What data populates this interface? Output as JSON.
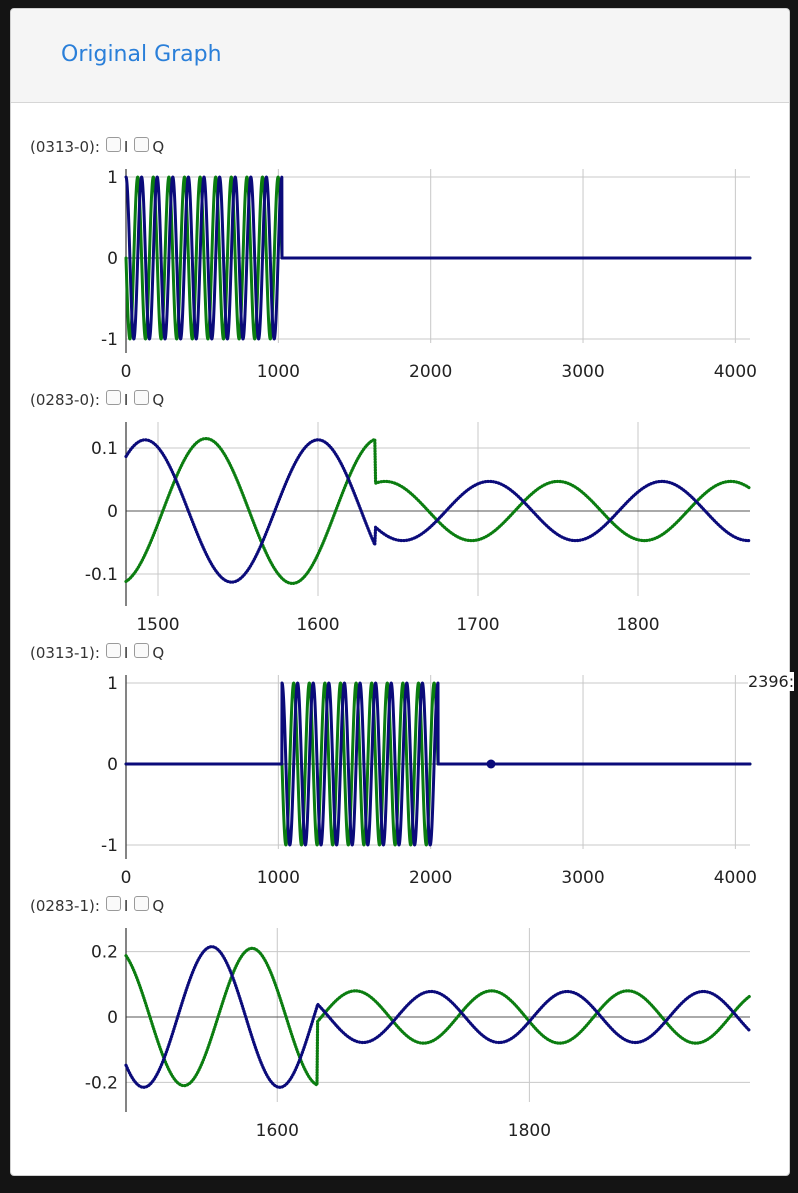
{
  "header": {
    "title": "Original Graph"
  },
  "hover_readout": "2396:",
  "checkbox_labels": [
    "I",
    "Q"
  ],
  "colors": {
    "I": "#0b0b7a",
    "Q": "#0b7d10",
    "grid": "#c8c8c8",
    "axis": "#333333"
  },
  "chart_data": [
    {
      "label": "(0313-0):",
      "type": "line",
      "xlim": [
        0,
        4096
      ],
      "ylim": [
        -1.05,
        1.05
      ],
      "xticks": [
        0,
        1000,
        2000,
        3000,
        4000
      ],
      "xtick_labels": [
        "0",
        "1000",
        "2000",
        "3000",
        "4000"
      ],
      "yticks": [
        1,
        0,
        -1
      ],
      "ytick_labels": [
        "1",
        "0",
        "-1"
      ],
      "grid": true,
      "series": [
        {
          "key": "I",
          "kind": "burst",
          "start": 0,
          "end": 1024,
          "cycles": 10,
          "amplitude": 1,
          "phase": 0
        },
        {
          "key": "Q",
          "kind": "burst",
          "start": 0,
          "end": 1024,
          "cycles": 10,
          "amplitude": 1,
          "phase": 1.5708
        }
      ]
    },
    {
      "label": "(0283-0):",
      "type": "line",
      "xlim": [
        1480,
        1870
      ],
      "ylim": [
        -0.135,
        0.135
      ],
      "xticks": [
        1500,
        1600,
        1700,
        1800
      ],
      "xtick_labels": [
        "1500",
        "1600",
        "1700",
        "1800"
      ],
      "yticks": [
        0.1,
        0,
        -0.1
      ],
      "ytick_labels": [
        "0.1",
        "0",
        "-0.1"
      ],
      "grid": true,
      "series": [
        {
          "key": "I",
          "kind": "decay",
          "switch": 1636,
          "period": 108,
          "amp1": 0.113,
          "amp2": 0.047,
          "peak1": 1492,
          "peak2": 1815
        },
        {
          "key": "Q",
          "kind": "decay",
          "switch": 1636,
          "period": 108,
          "amp1": 0.115,
          "amp2": 0.047,
          "peak1": 1530,
          "peak2": 1750
        }
      ]
    },
    {
      "label": "(0313-1):",
      "type": "line",
      "xlim": [
        0,
        4096
      ],
      "ylim": [
        -1.05,
        1.05
      ],
      "xticks": [
        0,
        1000,
        2000,
        3000,
        4000
      ],
      "xtick_labels": [
        "0",
        "1000",
        "2000",
        "3000",
        "4000"
      ],
      "yticks": [
        1,
        0,
        -1
      ],
      "ytick_labels": [
        "1",
        "0",
        "-1"
      ],
      "grid": true,
      "marker": {
        "x": 2396,
        "y": 0
      },
      "series": [
        {
          "key": "I",
          "kind": "burst",
          "start": 1024,
          "end": 2048,
          "cycles": 10,
          "amplitude": 1,
          "phase": 0
        },
        {
          "key": "Q",
          "kind": "burst",
          "start": 1024,
          "end": 2048,
          "cycles": 10,
          "amplitude": 1,
          "phase": 1.5708
        }
      ]
    },
    {
      "label": "(0283-1):",
      "type": "line",
      "xlim": [
        1480,
        1975
      ],
      "ylim": [
        -0.26,
        0.26
      ],
      "xticks": [
        1600,
        1800
      ],
      "xtick_labels": [
        "1600",
        "1800"
      ],
      "yticks": [
        0.2,
        0,
        -0.2
      ],
      "ytick_labels": [
        "0.2",
        "0",
        "-0.2"
      ],
      "grid": true,
      "series": [
        {
          "key": "I",
          "kind": "decay",
          "switch": 1632,
          "period": 108,
          "amp1": 0.215,
          "amp2": 0.078,
          "peak1": 1548,
          "peak2": 1830
        },
        {
          "key": "Q",
          "kind": "decay",
          "switch": 1632,
          "period": 108,
          "amp1": 0.21,
          "amp2": 0.08,
          "peak1": 1472,
          "peak2": 1770
        }
      ]
    }
  ]
}
